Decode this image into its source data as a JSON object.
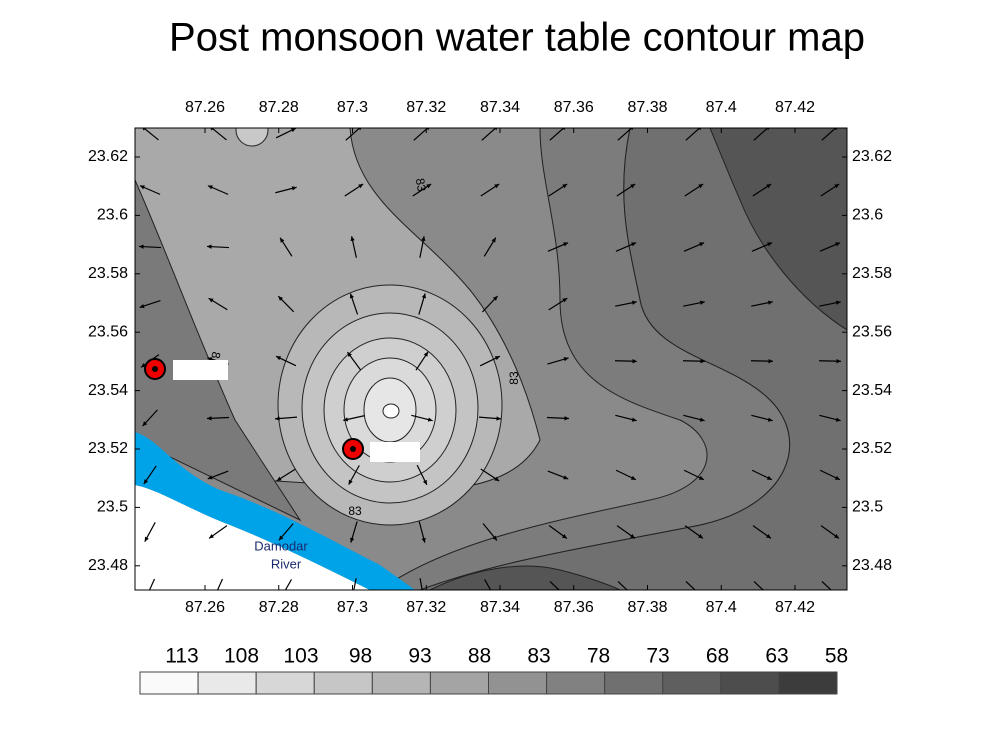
{
  "title": "Post monsoon water table contour map",
  "map": {
    "x_ticks": [
      87.26,
      87.28,
      87.3,
      87.32,
      87.34,
      87.36,
      87.38,
      87.4,
      87.42
    ],
    "y_ticks": [
      23.62,
      23.6,
      23.58,
      23.56,
      23.54,
      23.52,
      23.5,
      23.48
    ],
    "contour_labels": [
      "83",
      "83",
      "83",
      "8"
    ],
    "river_label": [
      "Damodar",
      "River"
    ]
  },
  "legend": {
    "levels": [
      113,
      108,
      103,
      98,
      93,
      88,
      83,
      78,
      73,
      68,
      63,
      58
    ]
  }
}
